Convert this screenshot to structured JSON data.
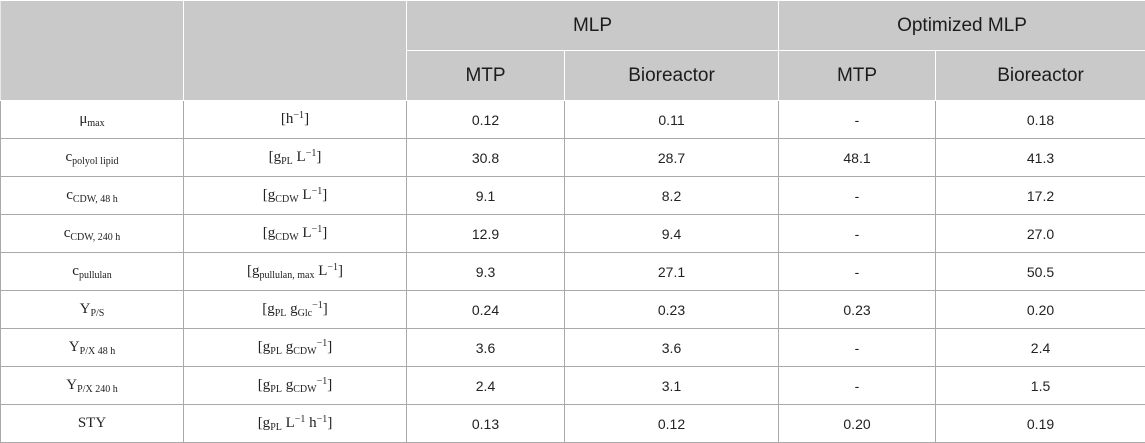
{
  "header": {
    "group_mlp": "MLP",
    "group_opt": "Optimized MLP",
    "sub_mtp_1": "MTP",
    "sub_bio_1": "Bioreactor",
    "sub_mtp_2": "MTP",
    "sub_bio_2": "Bioreactor"
  },
  "rows": [
    {
      "param": {
        "base": "μ",
        "sub": "max"
      },
      "unit": {
        "pre": "[h",
        "sup": "−1",
        "post": "]"
      },
      "mlp_mtp": "0.12",
      "mlp_bio": "0.11",
      "opt_mtp": "-",
      "opt_bio": "0.18"
    },
    {
      "param": {
        "base": "c",
        "sub": "polyol lipid"
      },
      "unit": {
        "p1": "[g",
        "s1": "PL",
        "p2": " L",
        "sup": "−1",
        "post": "]"
      },
      "mlp_mtp": "30.8",
      "mlp_bio": "28.7",
      "opt_mtp": "48.1",
      "opt_bio": "41.3"
    },
    {
      "param": {
        "base": "c",
        "sub": "CDW, 48 h"
      },
      "unit": {
        "p1": "[g",
        "s1": "CDW",
        "p2": " L",
        "sup": "−1",
        "post": "]"
      },
      "mlp_mtp": "9.1",
      "mlp_bio": "8.2",
      "opt_mtp": "-",
      "opt_bio": "17.2"
    },
    {
      "param": {
        "base": "c",
        "sub": "CDW, 240 h"
      },
      "unit": {
        "p1": "[g",
        "s1": "CDW",
        "p2": " L",
        "sup": "−1",
        "post": "]"
      },
      "mlp_mtp": "12.9",
      "mlp_bio": "9.4",
      "opt_mtp": "-",
      "opt_bio": "27.0"
    },
    {
      "param": {
        "base": "c",
        "sub": "pullulan"
      },
      "unit": {
        "p1": "[g",
        "s1": "pullulan, max",
        "p2": " L",
        "sup": "−1",
        "post": "]"
      },
      "mlp_mtp": "9.3",
      "mlp_bio": "27.1",
      "opt_mtp": "-",
      "opt_bio": "50.5"
    },
    {
      "param": {
        "base": "Y",
        "sub": "P/S"
      },
      "unit": {
        "p1": "[g",
        "s1": "PL",
        "p2": " g",
        "s2": "Glc",
        "sup": "−1",
        "post": "]"
      },
      "mlp_mtp": "0.24",
      "mlp_bio": "0.23",
      "opt_mtp": "0.23",
      "opt_bio": "0.20"
    },
    {
      "param": {
        "base": "Y",
        "sub": "P/X 48 h"
      },
      "unit": {
        "p1": "[g",
        "s1": "PL",
        "p2": " g",
        "s2": "CDW",
        "sup": "−1",
        "post": "]"
      },
      "mlp_mtp": "3.6",
      "mlp_bio": "3.6",
      "opt_mtp": "-",
      "opt_bio": "2.4"
    },
    {
      "param": {
        "base": "Y",
        "sub": "P/X 240 h"
      },
      "unit": {
        "p1": "[g",
        "s1": "PL",
        "p2": " g",
        "s2": "CDW",
        "sup": "−1",
        "post": "]"
      },
      "mlp_mtp": "2.4",
      "mlp_bio": "3.1",
      "opt_mtp": "-",
      "opt_bio": "1.5"
    },
    {
      "param": {
        "base": "STY"
      },
      "unit": {
        "p1": "[g",
        "s1": "PL",
        "p2": " L",
        "sup": "−1",
        "p3": " h",
        "sup2": "−1",
        "post": "]"
      },
      "mlp_mtp": "0.13",
      "mlp_bio": "0.12",
      "opt_mtp": "0.20",
      "opt_bio": "0.19"
    }
  ]
}
